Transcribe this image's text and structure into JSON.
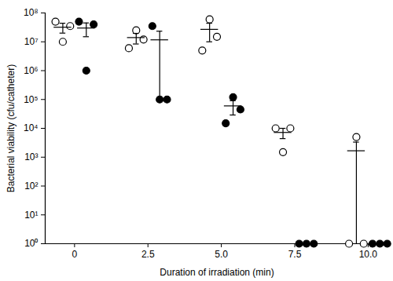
{
  "chart_data": {
    "type": "scatter",
    "x_label": "Duration of irradiation (min)",
    "y_label": "Bacterial viability (cfu/catheter)",
    "log": "y",
    "x": [
      0,
      2.5,
      5,
      7.5,
      10
    ],
    "xlim": [
      -1,
      10.7
    ],
    "xticks": [
      0,
      2.5,
      {
        "value": 5,
        "label": "5.0"
      },
      7.5,
      {
        "value": 10,
        "label": "10.0"
      }
    ],
    "ylim": [
      1,
      100000000
    ],
    "yticks": [
      {
        "value": 1,
        "label": "10⁰"
      },
      {
        "value": 10,
        "label": "10¹"
      },
      {
        "value": 100,
        "label": "10²"
      },
      {
        "value": 1000,
        "label": "10³"
      },
      {
        "value": 10000,
        "label": "10⁴"
      },
      {
        "value": 100000,
        "label": "10⁵"
      },
      {
        "value": 1000000,
        "label": "10⁶"
      },
      {
        "value": 10000000,
        "label": "10⁷"
      },
      {
        "value": 100000000,
        "label": "10⁸"
      }
    ],
    "series": [
      {
        "color": "#000000",
        "marker": "circle_open",
        "values": [
          [
            50000000,
            10000000,
            35000000
          ],
          [
            6000000,
            25000000,
            12000000
          ],
          [
            5000000,
            60000000,
            15000000
          ],
          [
            10000,
            1500,
            10000
          ],
          [
            1,
            5000,
            1
          ]
        ],
        "mean": [
          32000000,
          14000000,
          27000000,
          7200,
          1667
        ],
        "sem": [
          12000000,
          5600000,
          17000000,
          2800,
          1666
        ]
      },
      {
        "color": "#000000",
        "marker": "circle",
        "values": [
          [
            50000000,
            1000000,
            40000000
          ],
          [
            35000000,
            100000,
            100000
          ],
          [
            15000,
            120000,
            45000
          ],
          [
            1,
            1,
            1
          ],
          [
            1,
            1,
            1
          ]
        ],
        "mean": [
          30000000,
          11700000,
          60000,
          1,
          1
        ],
        "sem": [
          15000000,
          11600000,
          31000,
          0,
          0
        ]
      }
    ]
  }
}
